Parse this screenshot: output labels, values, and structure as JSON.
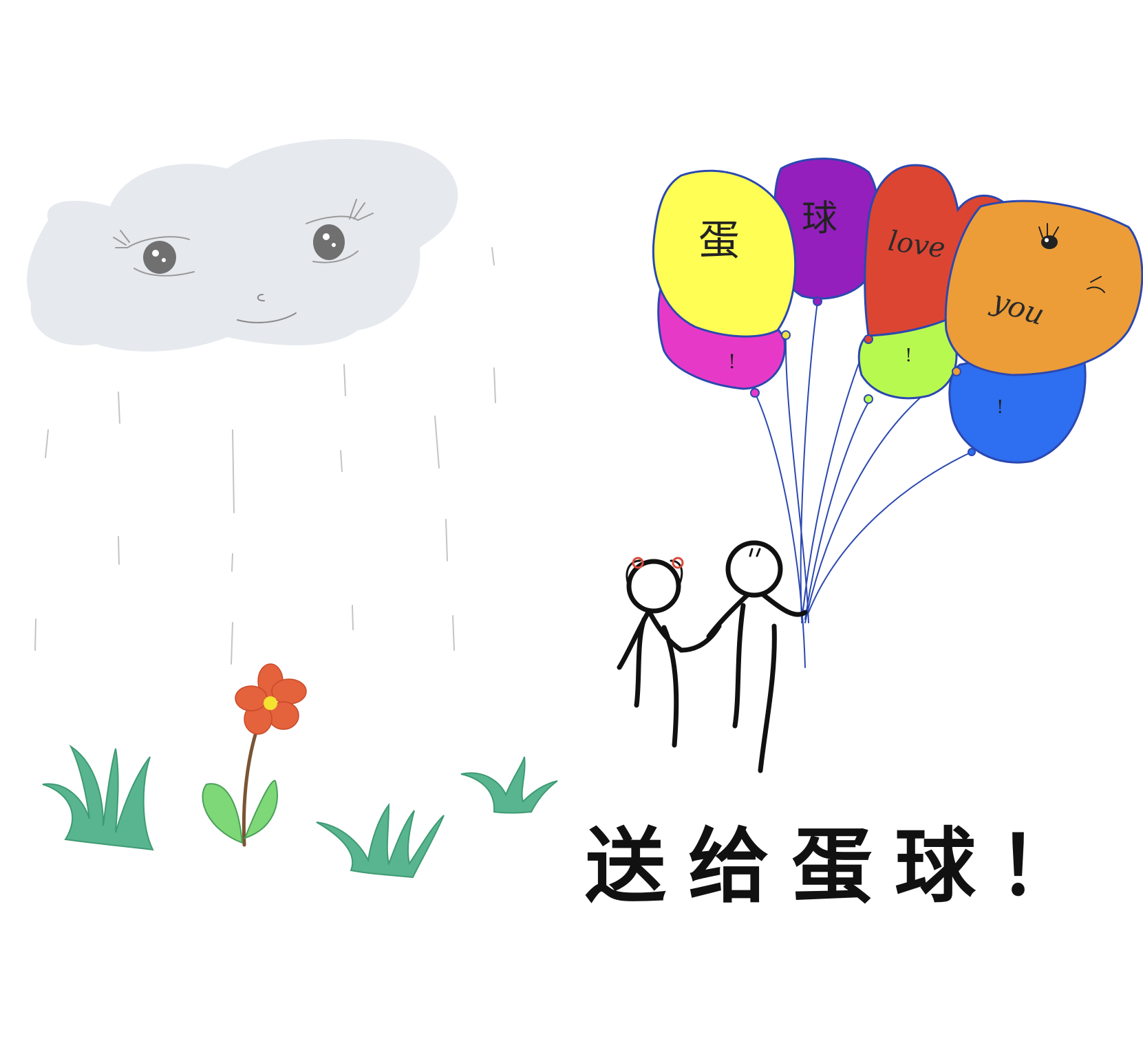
{
  "balloons": {
    "yellow_text": "蛋",
    "purple_text": "球",
    "red_text": "love",
    "orange_text": "you",
    "pink_text": "!",
    "green_text": "!",
    "blue_text": "!"
  },
  "caption": "送给蛋球！",
  "colors": {
    "cloud": "#e6e9ee",
    "yellow": "#fefe55",
    "purple": "#941fbd",
    "red": "#dc4532",
    "orange": "#ec9d38",
    "pink": "#e739c8",
    "lime": "#b8f950",
    "blue": "#2e6ef0",
    "grass": "#58b58f",
    "flower": "#e4623c",
    "string": "#2b48b0"
  }
}
